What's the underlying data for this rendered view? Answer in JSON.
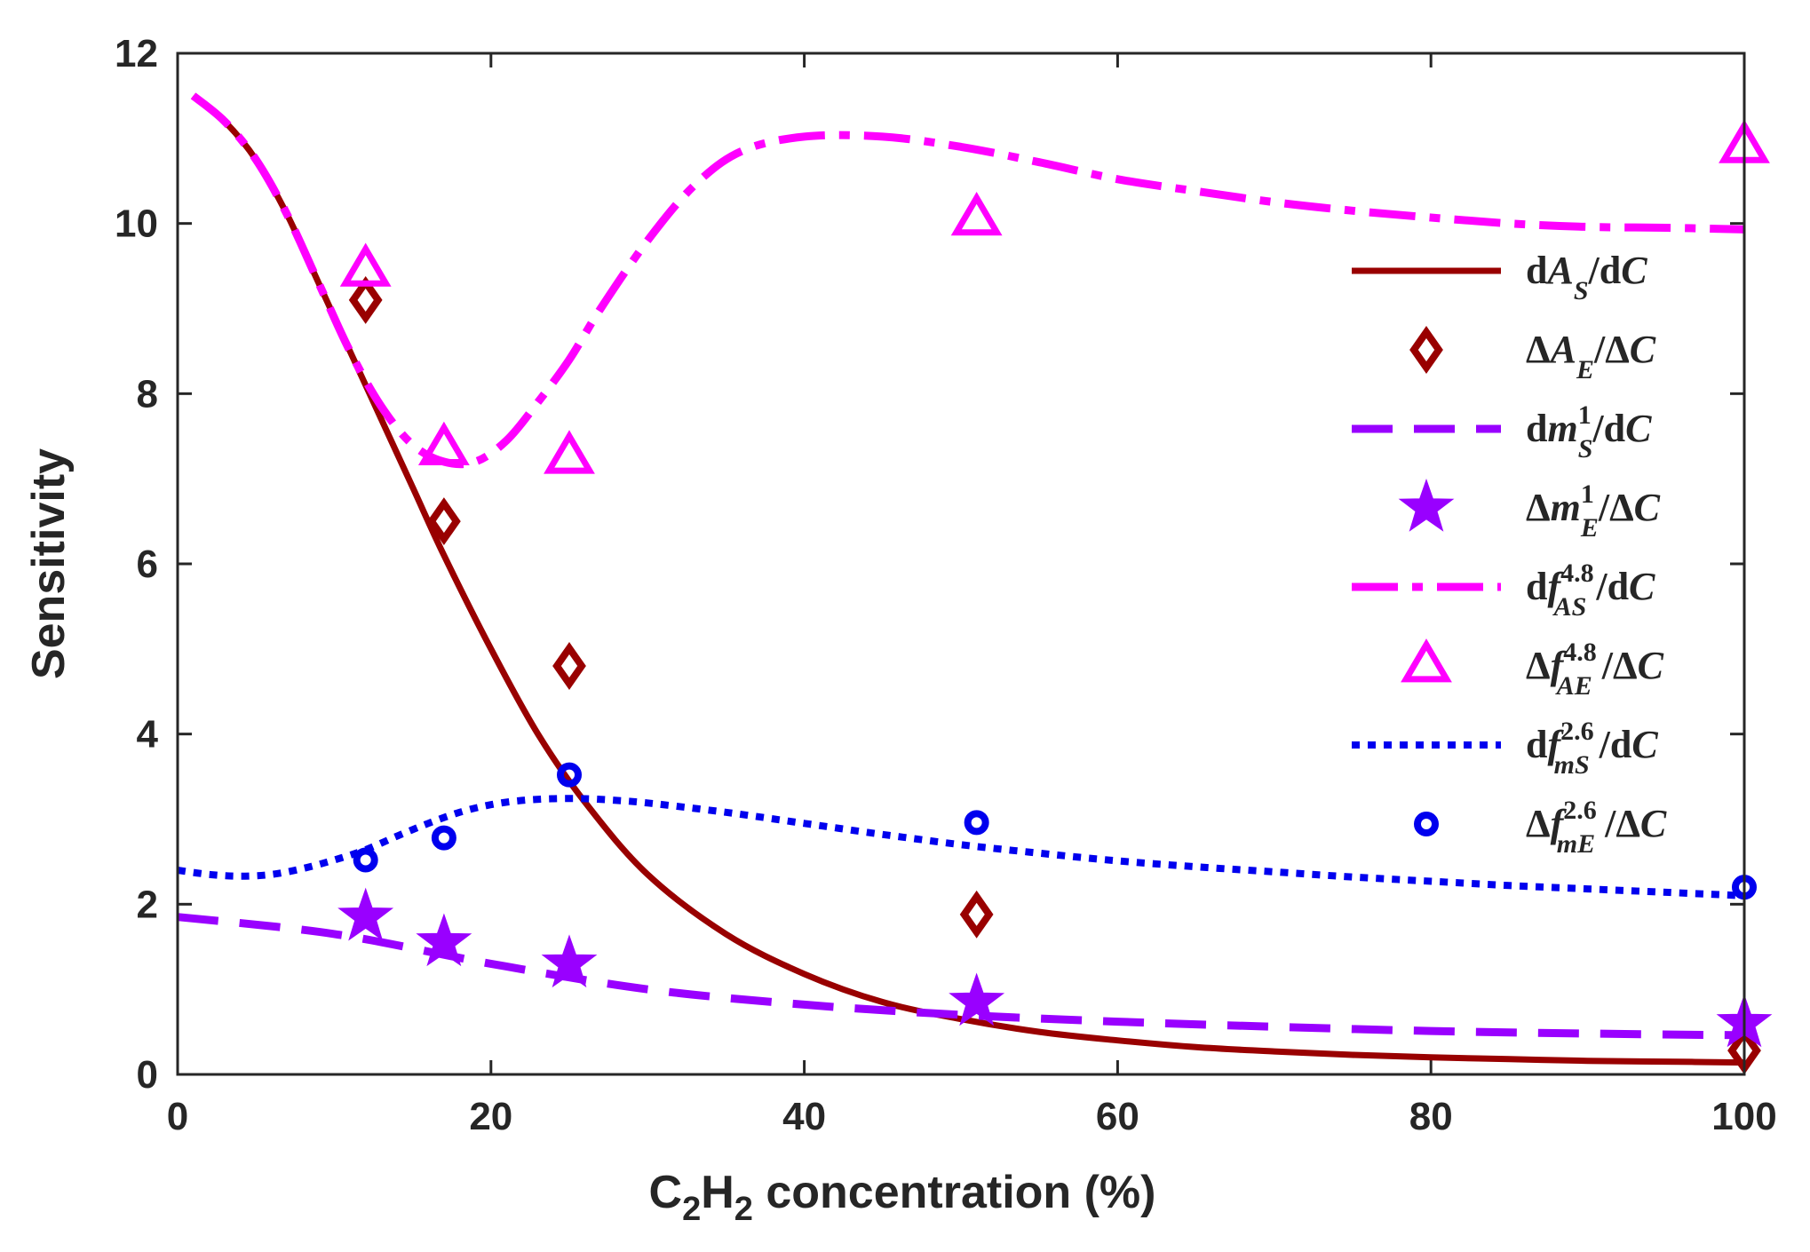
{
  "chart_data": {
    "type": "line",
    "title": "",
    "xlabel": "C2H2 concentration (%)",
    "xlabel_parts": {
      "c1": "C",
      "sub1": "2",
      "h": "H",
      "sub2": "2",
      "rest": " concentration (%)"
    },
    "ylabel": "Sensitivity",
    "xlim": [
      0,
      100
    ],
    "ylim": [
      0,
      12
    ],
    "xticks": [
      0,
      20,
      40,
      60,
      80,
      100
    ],
    "yticks": [
      0,
      2,
      4,
      6,
      8,
      10,
      12
    ],
    "grid": false,
    "legend_position": "right",
    "series": [
      {
        "name": "dA_S/dC",
        "kind": "line",
        "style": "solid",
        "color": "#990000",
        "legend": {
          "pre": "d",
          "var": "A",
          "sup": "",
          "sub": "S",
          "post": "/d",
          "var2": "C"
        },
        "x": [
          1,
          3,
          5,
          7,
          9,
          11,
          13,
          15,
          17,
          20,
          23,
          26,
          30,
          35,
          40,
          45,
          50,
          55,
          60,
          65,
          70,
          75,
          80,
          85,
          90,
          95,
          100
        ],
        "y": [
          11.5,
          11.2,
          10.75,
          10.1,
          9.3,
          8.5,
          7.7,
          6.9,
          6.1,
          5.0,
          4.0,
          3.2,
          2.35,
          1.65,
          1.18,
          0.85,
          0.65,
          0.5,
          0.4,
          0.32,
          0.27,
          0.23,
          0.2,
          0.18,
          0.16,
          0.15,
          0.14
        ]
      },
      {
        "name": "ΔA_E/ΔC",
        "kind": "marker",
        "marker": "diamond",
        "color": "#990000",
        "legend": {
          "pre": "Δ",
          "var": "A",
          "sup": "",
          "sub": "E",
          "post": "/Δ",
          "var2": "C"
        },
        "x": [
          12,
          17,
          25,
          51,
          100
        ],
        "y": [
          9.1,
          6.5,
          4.8,
          1.88,
          0.28
        ]
      },
      {
        "name": "dm_S^1/dC",
        "kind": "line",
        "style": "dashed",
        "color": "#9900ff",
        "legend": {
          "pre": "d",
          "var": "m",
          "sup": "1",
          "sub": "S",
          "post": "/d",
          "var2": "C"
        },
        "x": [
          0,
          10,
          20,
          30,
          40,
          50,
          60,
          70,
          80,
          90,
          100
        ],
        "y": [
          1.85,
          1.65,
          1.3,
          1.0,
          0.82,
          0.7,
          0.62,
          0.56,
          0.51,
          0.48,
          0.46
        ]
      },
      {
        "name": "Δm_E^1/ΔC",
        "kind": "marker",
        "marker": "star",
        "color": "#9900ff",
        "legend": {
          "pre": "Δ",
          "var": "m",
          "sup": "1",
          "sub": "E",
          "post": "/Δ",
          "var2": "C"
        },
        "x": [
          12,
          17,
          25,
          51,
          100
        ],
        "y": [
          1.85,
          1.55,
          1.3,
          0.85,
          0.6
        ]
      },
      {
        "name": "df_AS^4.8/dC",
        "kind": "line",
        "style": "dashdot",
        "color": "#ff00ff",
        "legend": {
          "pre": "d",
          "var": "f",
          "sup": "4.8",
          "sub": "AS",
          "post": "/d",
          "var2": "C"
        },
        "x": [
          1,
          3,
          5,
          7,
          9,
          11,
          13,
          15,
          17,
          19,
          21,
          23,
          25,
          27,
          30,
          33,
          36,
          40,
          45,
          50,
          55,
          60,
          65,
          70,
          75,
          80,
          85,
          90,
          95,
          100
        ],
        "y": [
          11.5,
          11.2,
          10.75,
          10.1,
          9.3,
          8.5,
          7.85,
          7.4,
          7.2,
          7.2,
          7.45,
          7.9,
          8.4,
          9.0,
          9.8,
          10.45,
          10.85,
          11.02,
          11.02,
          10.9,
          10.72,
          10.52,
          10.38,
          10.25,
          10.15,
          10.07,
          10.0,
          9.96,
          9.95,
          9.93
        ]
      },
      {
        "name": "Δf_AE^4.8/ΔC",
        "kind": "marker",
        "marker": "triangle",
        "color": "#ff00ff",
        "legend": {
          "pre": "Δ",
          "var": "f",
          "sup": "4.8",
          "sub": "AE",
          "post": "/Δ",
          "var2": "C"
        },
        "x": [
          12,
          17,
          25,
          51,
          100
        ],
        "y": [
          9.45,
          7.35,
          7.25,
          10.05,
          10.9
        ]
      },
      {
        "name": "df_mS^2.6/dC",
        "kind": "line",
        "style": "dotted",
        "color": "#0000ee",
        "legend": {
          "pre": "d",
          "var": "f",
          "sup": "2.6",
          "sub": "mS",
          "post": "/d",
          "var2": "C"
        },
        "x": [
          0,
          2,
          4,
          6,
          8,
          10,
          12,
          14,
          16,
          18,
          20,
          22,
          24,
          26,
          28,
          30,
          35,
          40,
          45,
          50,
          55,
          60,
          65,
          70,
          75,
          80,
          85,
          90,
          95,
          100
        ],
        "y": [
          2.4,
          2.35,
          2.33,
          2.35,
          2.42,
          2.52,
          2.64,
          2.8,
          2.95,
          3.08,
          3.17,
          3.22,
          3.24,
          3.24,
          3.22,
          3.19,
          3.08,
          2.95,
          2.82,
          2.7,
          2.6,
          2.51,
          2.44,
          2.38,
          2.32,
          2.27,
          2.22,
          2.18,
          2.14,
          2.1
        ]
      },
      {
        "name": "Δf_mE^2.6/ΔC",
        "kind": "marker",
        "marker": "circle",
        "color": "#0000ee",
        "legend": {
          "pre": "Δ",
          "var": "f",
          "sup": "2.6",
          "sub": "mE",
          "post": "/Δ",
          "var2": "C"
        },
        "x": [
          12,
          17,
          25,
          51,
          100
        ],
        "y": [
          2.52,
          2.78,
          3.52,
          2.96,
          2.2
        ]
      }
    ]
  }
}
